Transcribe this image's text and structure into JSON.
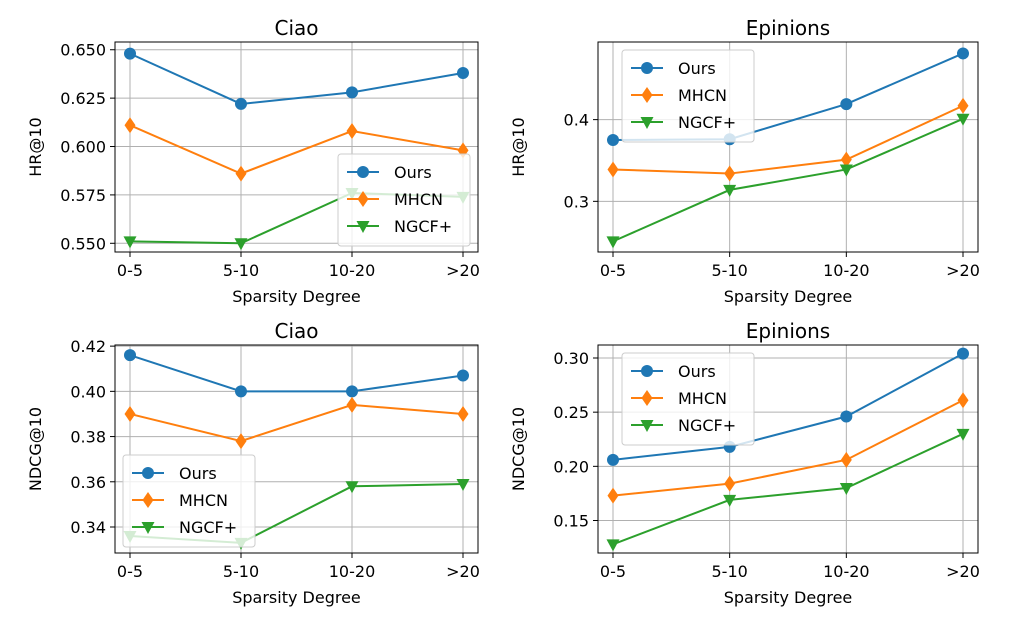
{
  "colors": {
    "Ours": "#1f77b4",
    "MHCN": "#ff7f0e",
    "NGCF+": "#2ca02c",
    "grid": "#b0b0b0"
  },
  "chart_data": [
    {
      "type": "line",
      "title": "Ciao",
      "xlabel": "Sparsity Degree",
      "ylabel": "HR@10",
      "categories": [
        "0-5",
        "5-10",
        "10-20",
        ">20"
      ],
      "ylim": [
        0.5455,
        0.654
      ],
      "yticks": [
        "0.550",
        "0.575",
        "0.600",
        "0.625",
        "0.650"
      ],
      "legend_loc": "lower right",
      "grid": true,
      "series": [
        {
          "name": "Ours",
          "marker": "circle",
          "values": [
            0.648,
            0.622,
            0.628,
            0.638
          ]
        },
        {
          "name": "MHCN",
          "marker": "diamond",
          "values": [
            0.611,
            0.586,
            0.608,
            0.598
          ]
        },
        {
          "name": "NGCF+",
          "marker": "triangle-down",
          "values": [
            0.551,
            0.55,
            0.576,
            0.574
          ]
        }
      ]
    },
    {
      "type": "line",
      "title": "Epinions",
      "xlabel": "Sparsity Degree",
      "ylabel": "HR@10",
      "categories": [
        "0-5",
        "5-10",
        "10-20",
        ">20"
      ],
      "ylim": [
        0.238,
        0.495
      ],
      "yticks": [
        "0.3",
        "0.4"
      ],
      "legend_loc": "upper left",
      "grid": true,
      "series": [
        {
          "name": "Ours",
          "marker": "circle",
          "values": [
            0.375,
            0.376,
            0.419,
            0.481
          ]
        },
        {
          "name": "MHCN",
          "marker": "diamond",
          "values": [
            0.339,
            0.334,
            0.351,
            0.417
          ]
        },
        {
          "name": "NGCF+",
          "marker": "triangle-down",
          "values": [
            0.251,
            0.314,
            0.339,
            0.401
          ]
        }
      ]
    },
    {
      "type": "line",
      "title": "Ciao",
      "xlabel": "Sparsity Degree",
      "ylabel": "NDCG@10",
      "categories": [
        "0-5",
        "5-10",
        "10-20",
        ">20"
      ],
      "ylim": [
        0.3285,
        0.4205
      ],
      "yticks": [
        "0.34",
        "0.36",
        "0.38",
        "0.40",
        "0.42"
      ],
      "legend_loc": "lower left",
      "grid": true,
      "series": [
        {
          "name": "Ours",
          "marker": "circle",
          "values": [
            0.416,
            0.4,
            0.4,
            0.407
          ]
        },
        {
          "name": "MHCN",
          "marker": "diamond",
          "values": [
            0.39,
            0.378,
            0.394,
            0.39
          ]
        },
        {
          "name": "NGCF+",
          "marker": "triangle-down",
          "values": [
            0.336,
            0.333,
            0.358,
            0.359
          ]
        }
      ]
    },
    {
      "type": "line",
      "title": "Epinions",
      "xlabel": "Sparsity Degree",
      "ylabel": "NDCG@10",
      "categories": [
        "0-5",
        "5-10",
        "10-20",
        ">20"
      ],
      "ylim": [
        0.12,
        0.312
      ],
      "yticks": [
        "0.15",
        "0.20",
        "0.25",
        "0.30"
      ],
      "legend_loc": "upper left",
      "grid": true,
      "series": [
        {
          "name": "Ours",
          "marker": "circle",
          "values": [
            0.206,
            0.218,
            0.246,
            0.304
          ]
        },
        {
          "name": "MHCN",
          "marker": "diamond",
          "values": [
            0.173,
            0.184,
            0.206,
            0.261
          ]
        },
        {
          "name": "NGCF+",
          "marker": "triangle-down",
          "values": [
            0.128,
            0.169,
            0.18,
            0.23
          ]
        }
      ]
    }
  ]
}
